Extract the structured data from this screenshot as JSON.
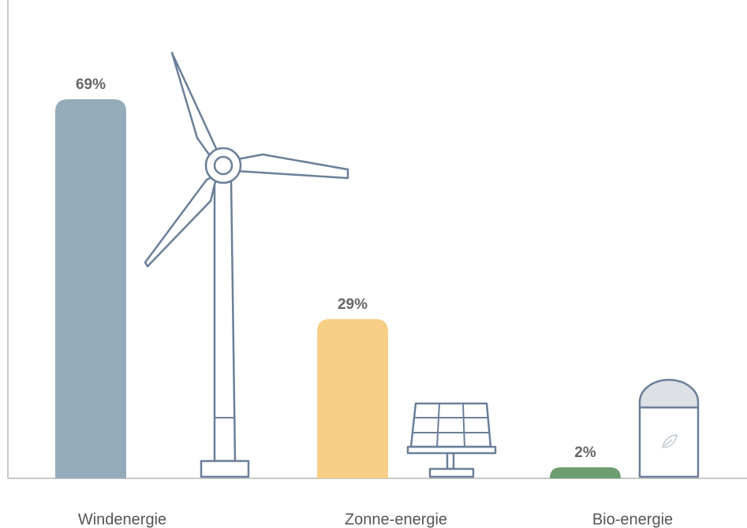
{
  "chart_data": {
    "type": "bar",
    "categories": [
      "Windenergie",
      "Zonne-energie",
      "Bio-energie"
    ],
    "values": [
      69,
      29,
      2
    ],
    "value_labels": [
      "69%",
      "29%",
      "2%"
    ],
    "colors": [
      "#94abb9",
      "#f7cf86",
      "#6e9e70"
    ]
  }
}
